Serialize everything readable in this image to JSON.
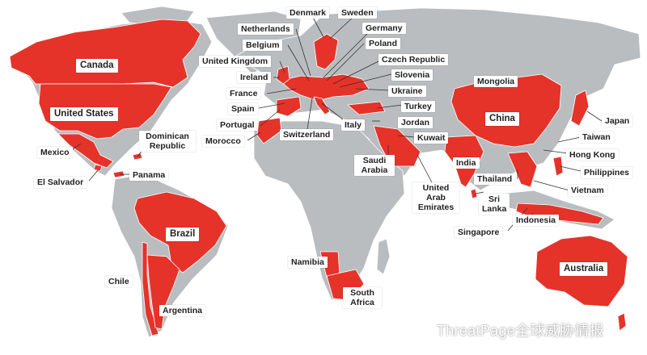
{
  "colors": {
    "highlight": "#e5332a",
    "land": "#b9bdc0",
    "ocean": "#ffffff"
  },
  "labels": {
    "canada": "Canada",
    "united_states": "United States",
    "mexico": "Mexico",
    "el_salvador": "El Salvador",
    "panama": "Panama",
    "dominican_republic": "Dominican Republic",
    "brazil": "Brazil",
    "chile": "Chile",
    "argentina": "Argentina",
    "denmark": "Denmark",
    "sweden": "Sweden",
    "netherlands": "Netherlands",
    "germany": "Germany",
    "belgium": "Belgium",
    "poland": "Poland",
    "united_kingdom": "United Kingdom",
    "czech_republic": "Czech Republic",
    "ireland": "Ireland",
    "slovenia": "Slovenia",
    "france": "France",
    "ukraine": "Ukraine",
    "spain": "Spain",
    "turkey": "Turkey",
    "portugal": "Portugal",
    "italy": "Italy",
    "jordan": "Jordan",
    "morocco": "Morocco",
    "switzerland": "Switzerland",
    "kuwait": "Kuwait",
    "saudi_arabia": "Saudi Arabia",
    "uae": "United Arab Emirates",
    "mongolia": "Mongolia",
    "china": "China",
    "japan": "Japan",
    "taiwan": "Taiwan",
    "hong_kong": "Hong Kong",
    "india": "India",
    "thailand": "Thailand",
    "philippines": "Philippines",
    "vietnam": "Vietnam",
    "sri_lanka": "Sri Lanka",
    "indonesia": "Indonesia",
    "singapore": "Singapore",
    "australia": "Australia",
    "namibia": "Namibia",
    "south_africa": "South Africa"
  },
  "watermark": {
    "text": "ThreatPage全球威胁情报",
    "icon": "wechat-icon"
  }
}
